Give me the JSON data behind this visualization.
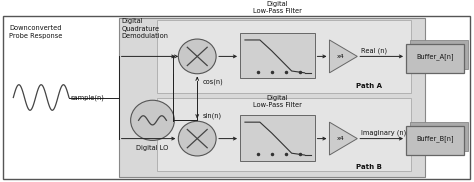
{
  "bg_color": "#ffffff",
  "title_dqd": "Digital\nQuadrature\nDemodulation",
  "title_lpf_top": "Digital\nLow-Pass Filter",
  "title_lpf_bot": "Digital\nLow-Pass Filter",
  "label_left_top": "Downconverted\nProbe Response",
  "label_sample": "sample(n)",
  "label_digital_lo": "Digital LO",
  "label_cos": "cos(n)",
  "label_sin": "sin(n)",
  "label_x4_top": "x4",
  "label_x4_bot": "x4",
  "label_real": "Real (n)",
  "label_imaginary": "Imaginary (n)",
  "label_path_a": "Path A",
  "label_path_b": "Path B",
  "label_buf_a": "Buffer_A[n]",
  "label_buf_b": "Buffer_B[n]",
  "circle_color": "#c8c8c8",
  "lpf_box_color": "#b8b8b8",
  "inner_bg": "#d8d8d8",
  "subpath_bg": "#e4e4e4",
  "buf_color": "#c0c0c0",
  "buf_shadow": "#a0a0a0",
  "arrow_color": "#222222",
  "text_color": "#111111",
  "edge_color": "#555555"
}
